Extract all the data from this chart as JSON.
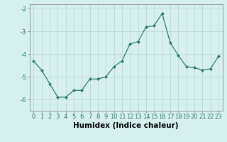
{
  "x": [
    0,
    1,
    2,
    3,
    4,
    5,
    6,
    7,
    8,
    9,
    10,
    11,
    12,
    13,
    14,
    15,
    16,
    17,
    18,
    19,
    20,
    21,
    22,
    23
  ],
  "y": [
    -4.3,
    -4.7,
    -5.3,
    -5.9,
    -5.9,
    -5.6,
    -5.6,
    -5.1,
    -5.1,
    -5.0,
    -4.55,
    -4.3,
    -3.55,
    -3.45,
    -2.8,
    -2.75,
    -2.2,
    -3.5,
    -4.05,
    -4.55,
    -4.6,
    -4.7,
    -4.65,
    -4.1
  ],
  "xlabel": "Humidex (Indice chaleur)",
  "ylim": [
    -6.5,
    -1.8
  ],
  "xlim": [
    -0.5,
    23.5
  ],
  "yticks": [
    -6,
    -5,
    -4,
    -3,
    -2
  ],
  "xticks": [
    0,
    1,
    2,
    3,
    4,
    5,
    6,
    7,
    8,
    9,
    10,
    11,
    12,
    13,
    14,
    15,
    16,
    17,
    18,
    19,
    20,
    21,
    22,
    23
  ],
  "line_color": "#2e7d6e",
  "marker": "D",
  "marker_size": 2.0,
  "bg_color": "#d6f0ef",
  "grid_color": "#b8dbd9",
  "tick_fontsize": 6.0,
  "xlabel_fontsize": 7.5,
  "xlabel_fontweight": "bold"
}
